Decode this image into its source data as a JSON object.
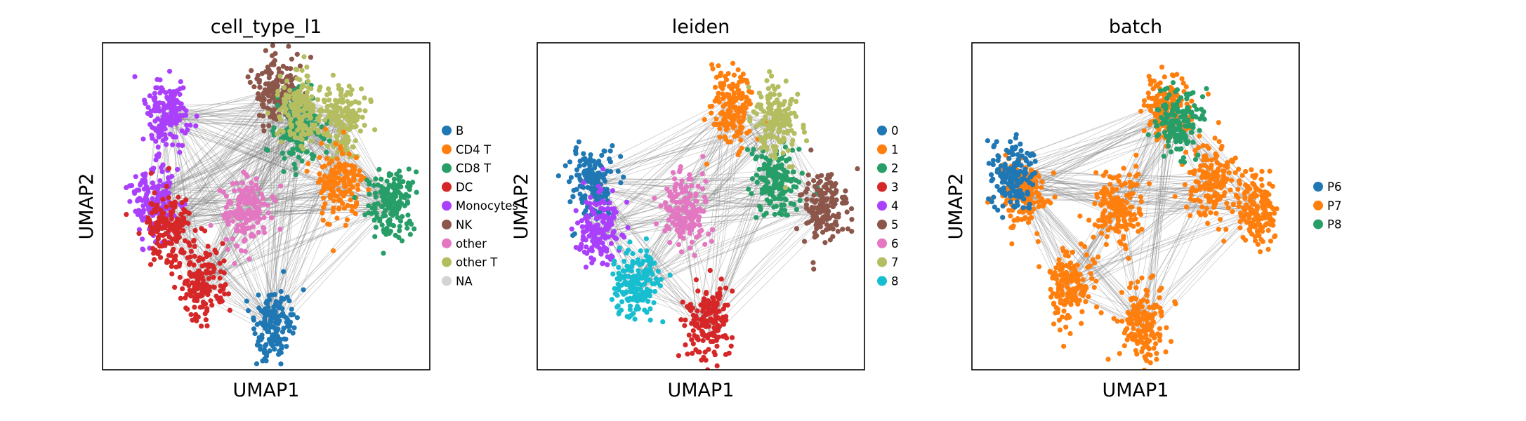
{
  "chart_data": [
    {
      "type": "scatter",
      "title": "cell_type_l1",
      "xlabel": "UMAP1",
      "ylabel": "UMAP2",
      "grid": false,
      "ticks": false,
      "legend_placement": "right",
      "legend": [
        {
          "label": "B",
          "color": "#1f77b4"
        },
        {
          "label": "CD4 T",
          "color": "#ff7f0e"
        },
        {
          "label": "CD8 T",
          "color": "#279e68"
        },
        {
          "label": "DC",
          "color": "#d62728"
        },
        {
          "label": "Monocytes",
          "color": "#aa40fc"
        },
        {
          "label": "NK",
          "color": "#8c564b"
        },
        {
          "label": "other",
          "color": "#e377c2"
        },
        {
          "label": "other T",
          "color": "#b5bd61"
        },
        {
          "label": "NA",
          "color": "#d3d3d3"
        }
      ],
      "clusters": [
        {
          "x": 0.16,
          "y": 0.52,
          "category": "Monocytes"
        },
        {
          "x": 0.2,
          "y": 0.78,
          "category": "Monocytes"
        },
        {
          "x": 0.21,
          "y": 0.44,
          "category": "DC"
        },
        {
          "x": 0.3,
          "y": 0.26,
          "category": "DC"
        },
        {
          "x": 0.44,
          "y": 0.49,
          "category": "other"
        },
        {
          "x": 0.53,
          "y": 0.85,
          "category": "NK"
        },
        {
          "x": 0.6,
          "y": 0.74,
          "category": "CD8 T"
        },
        {
          "x": 0.6,
          "y": 0.8,
          "category": "other T"
        },
        {
          "x": 0.73,
          "y": 0.76,
          "category": "other T"
        },
        {
          "x": 0.72,
          "y": 0.58,
          "category": "CD4 T"
        },
        {
          "x": 0.88,
          "y": 0.51,
          "category": "CD8 T"
        },
        {
          "x": 0.52,
          "y": 0.14,
          "category": "B"
        }
      ]
    },
    {
      "type": "scatter",
      "title": "leiden",
      "xlabel": "UMAP1",
      "ylabel": "UMAP2",
      "grid": false,
      "ticks": false,
      "legend_placement": "right",
      "legend": [
        {
          "label": "0",
          "color": "#1f77b4"
        },
        {
          "label": "1",
          "color": "#ff7f0e"
        },
        {
          "label": "2",
          "color": "#279e68"
        },
        {
          "label": "3",
          "color": "#d62728"
        },
        {
          "label": "4",
          "color": "#aa40fc"
        },
        {
          "label": "5",
          "color": "#8c564b"
        },
        {
          "label": "6",
          "color": "#e377c2"
        },
        {
          "label": "7",
          "color": "#b5bd61"
        },
        {
          "label": "8",
          "color": "#17becf"
        }
      ],
      "clusters": [
        {
          "x": 0.17,
          "y": 0.57,
          "category": "0"
        },
        {
          "x": 0.6,
          "y": 0.8,
          "category": "1"
        },
        {
          "x": 0.73,
          "y": 0.58,
          "category": "2"
        },
        {
          "x": 0.52,
          "y": 0.14,
          "category": "3"
        },
        {
          "x": 0.19,
          "y": 0.43,
          "category": "4"
        },
        {
          "x": 0.87,
          "y": 0.5,
          "category": "5"
        },
        {
          "x": 0.45,
          "y": 0.49,
          "category": "6"
        },
        {
          "x": 0.73,
          "y": 0.76,
          "category": "7"
        },
        {
          "x": 0.3,
          "y": 0.26,
          "category": "8"
        }
      ]
    },
    {
      "type": "scatter",
      "title": "batch",
      "xlabel": "UMAP1",
      "ylabel": "UMAP2",
      "grid": false,
      "ticks": false,
      "legend_placement": "right",
      "legend": [
        {
          "label": "P6",
          "color": "#1f77b4"
        },
        {
          "label": "P7",
          "color": "#ff7f0e"
        },
        {
          "label": "P8",
          "color": "#279e68"
        }
      ],
      "clusters": [
        {
          "x": 0.16,
          "y": 0.55,
          "category": "P7"
        },
        {
          "x": 0.6,
          "y": 0.8,
          "category": "P7"
        },
        {
          "x": 0.73,
          "y": 0.58,
          "category": "P7"
        },
        {
          "x": 0.52,
          "y": 0.14,
          "category": "P7"
        },
        {
          "x": 0.87,
          "y": 0.5,
          "category": "P7"
        },
        {
          "x": 0.45,
          "y": 0.49,
          "category": "P7"
        },
        {
          "x": 0.3,
          "y": 0.26,
          "category": "P7"
        },
        {
          "x": 0.12,
          "y": 0.6,
          "category": "P6"
        },
        {
          "x": 0.63,
          "y": 0.76,
          "category": "P8"
        }
      ]
    }
  ]
}
